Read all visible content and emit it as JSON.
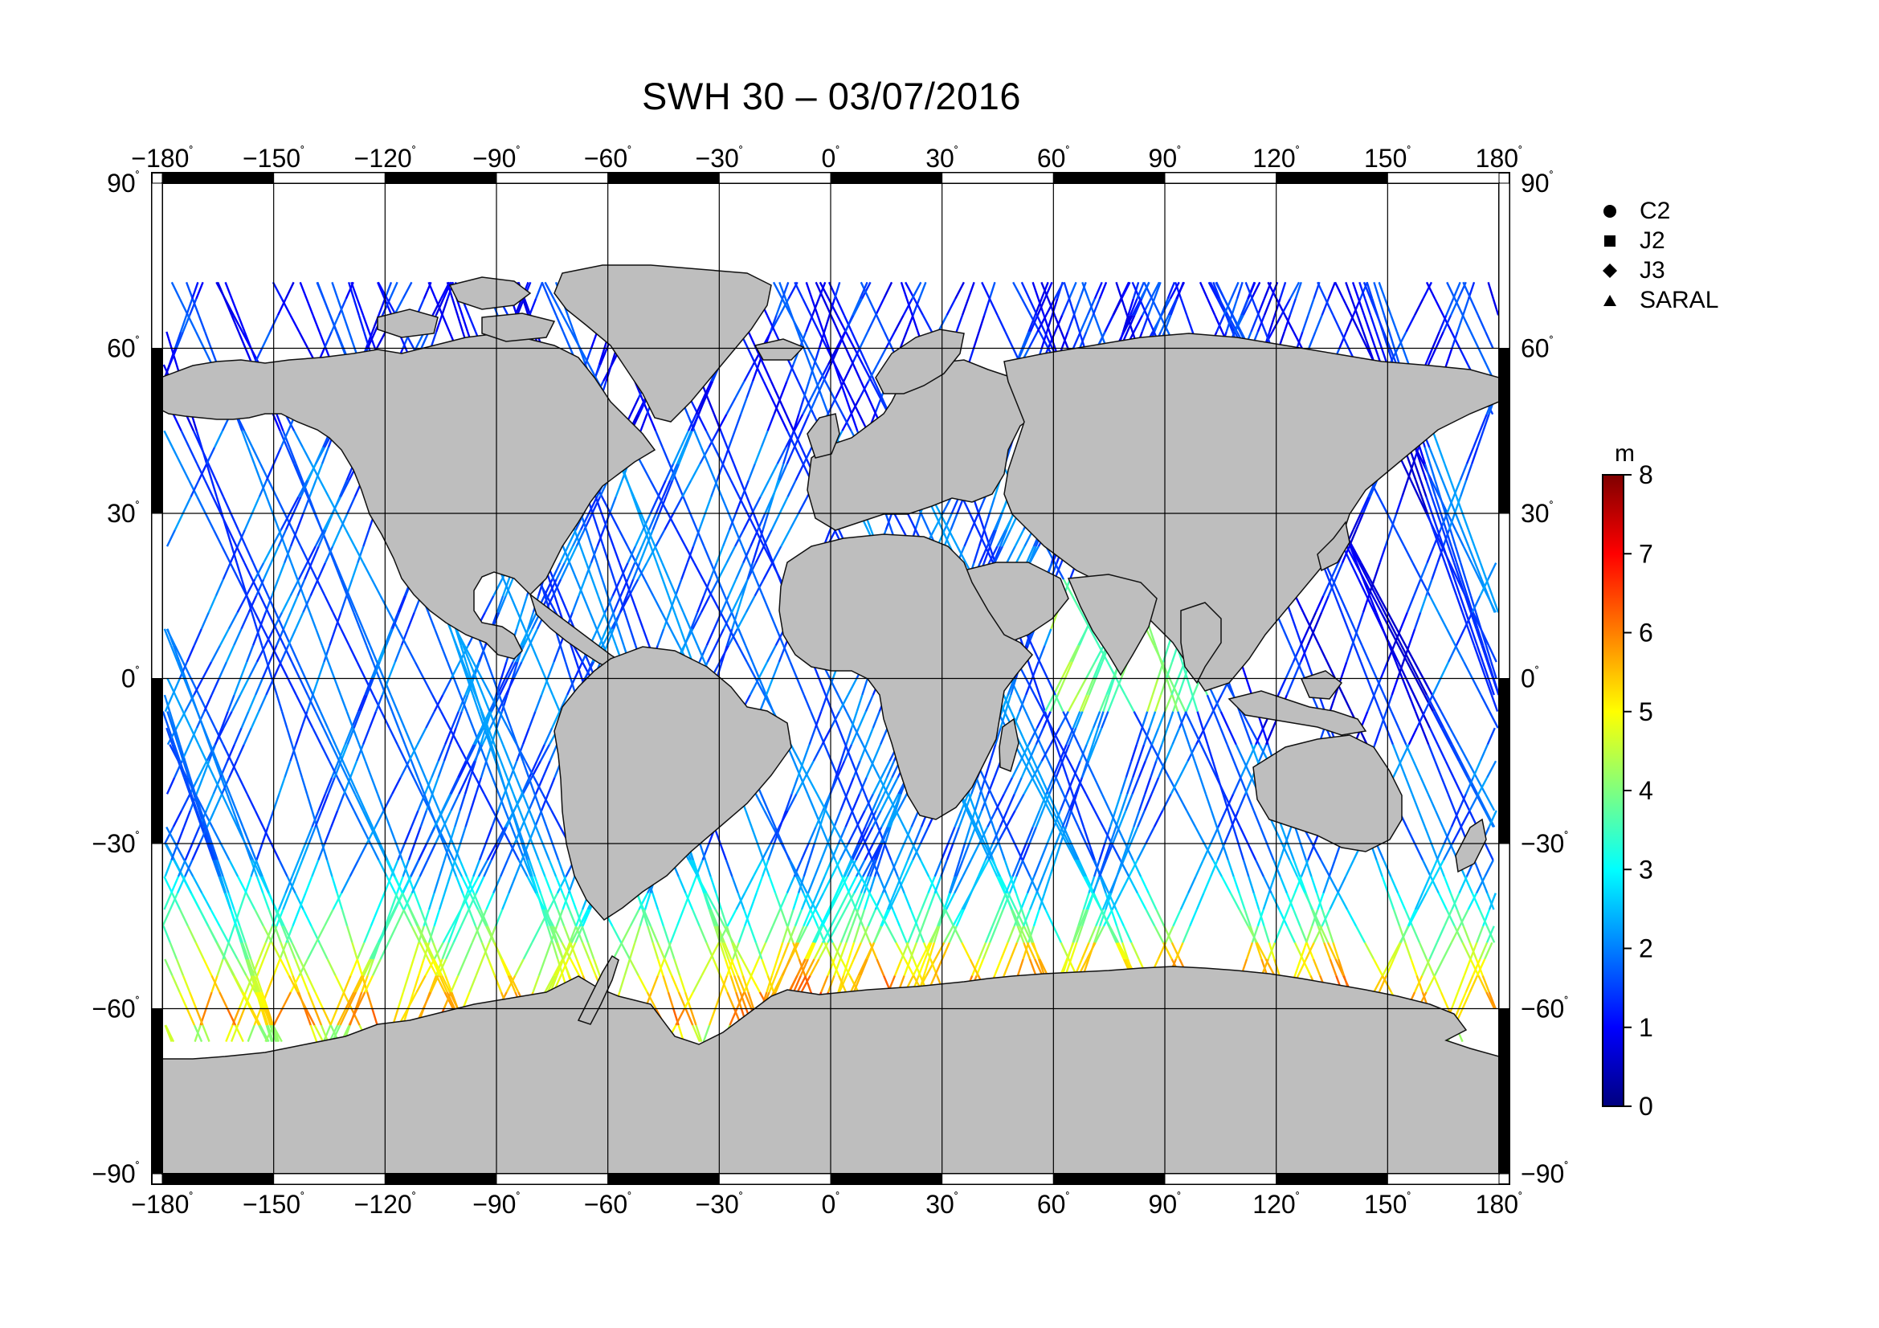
{
  "title": "SWH 30 – 03/07/2016",
  "map": {
    "lon_ticks": [
      "−180",
      "−150",
      "−120",
      "−90",
      "−60",
      "−30",
      "0",
      "30",
      "60",
      "90",
      "120",
      "150",
      "180"
    ],
    "lat_ticks": [
      "90",
      "60",
      "30",
      "0",
      "−30",
      "−60",
      "−90"
    ],
    "degree_mark": "˚",
    "land_color": "#bebebe",
    "frame_color": "#000000"
  },
  "legend": [
    {
      "label": "C2",
      "marker": "circle-icon"
    },
    {
      "label": "J2",
      "marker": "square-icon"
    },
    {
      "label": "J3",
      "marker": "diamond-icon"
    },
    {
      "label": "SARAL",
      "marker": "triangle-icon"
    }
  ],
  "colorbar": {
    "unit": "m",
    "min": 0,
    "max": 8,
    "ticks": [
      "0",
      "1",
      "2",
      "3",
      "4",
      "5",
      "6",
      "7",
      "8"
    ],
    "colormap": [
      "#00007f",
      "#0000ff",
      "#007fff",
      "#00ffff",
      "#7fff7f",
      "#ffff00",
      "#ff7f00",
      "#ff0000",
      "#7f0000"
    ]
  }
}
